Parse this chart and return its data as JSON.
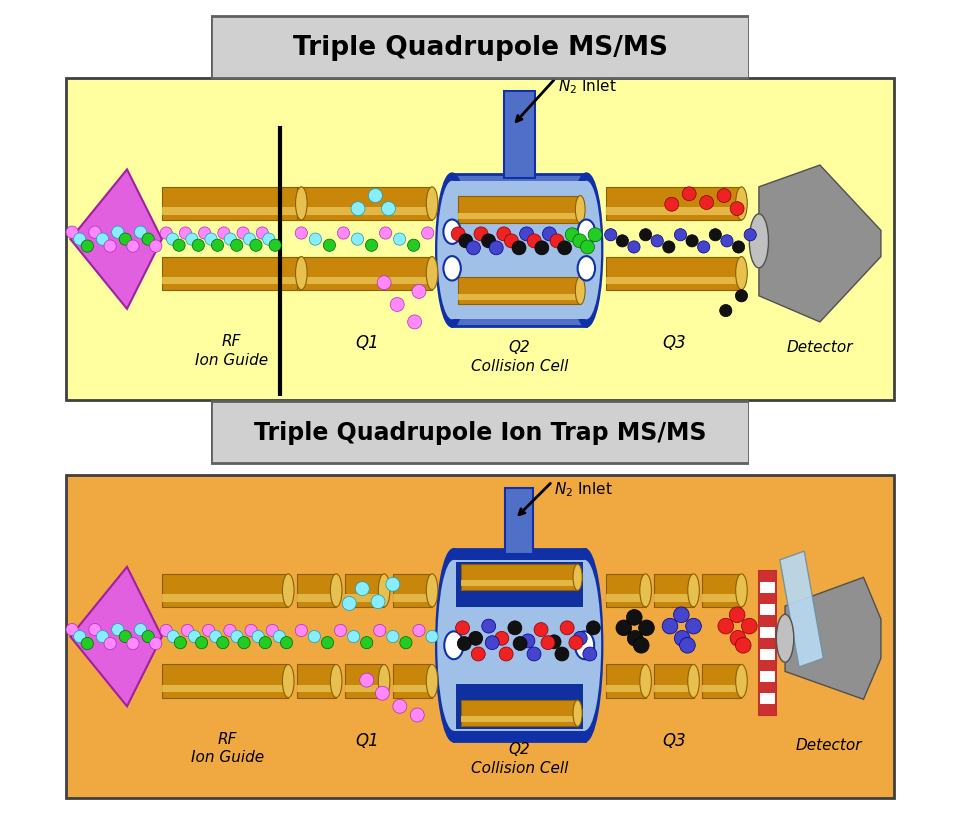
{
  "title1": "Triple Quadrupole MS/MS",
  "title2": "Triple Quadrupole Ion Trap MS/MS",
  "bg_color1": "#FFFFA0",
  "bg_color2": "#F0A840",
  "gold_dark": "#8B6000",
  "gold_mid": "#C8860A",
  "gold_light": "#E8C050",
  "blue_dark": "#1030A8",
  "blue_mid": "#5070C8",
  "blue_light": "#A0C0E8",
  "magenta_dark": "#A020A0",
  "magenta_mid": "#E060E0",
  "gray_dark": "#505050",
  "gray_mid": "#909090",
  "gray_light": "#C0C0C0",
  "label_rf": "RF\nIon Guide",
  "label_q1": "Q1",
  "label_q2": "Q2\nCollision Cell",
  "label_q3": "Q3",
  "label_det": "Detector"
}
